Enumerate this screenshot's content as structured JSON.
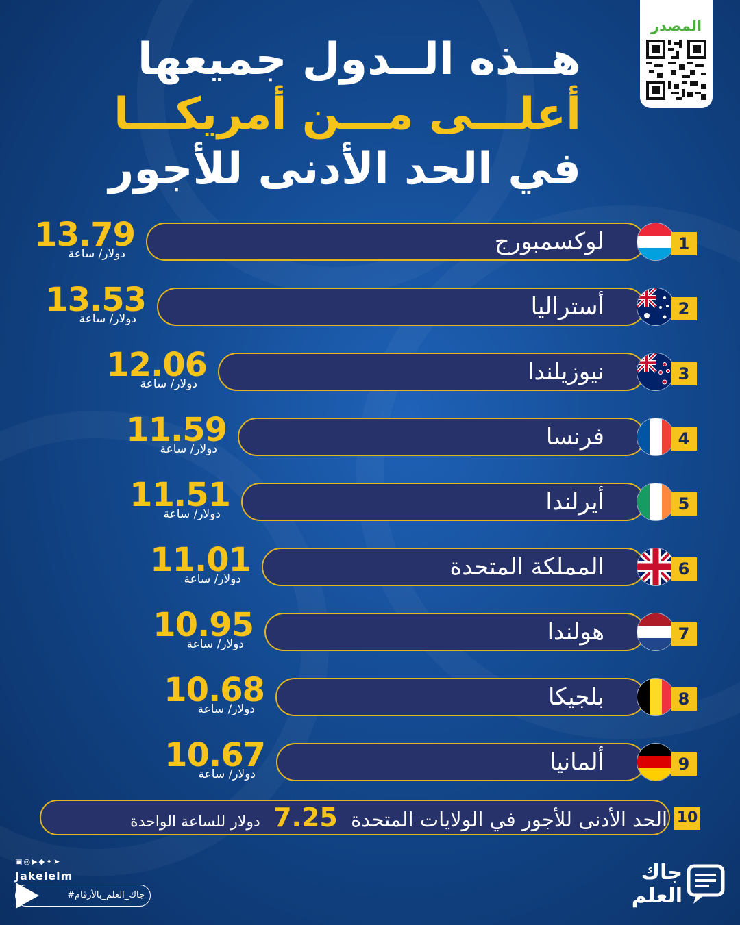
{
  "title": {
    "line1": "هــذه الــدول جميعها",
    "line2": "أعلـــى مـــن أمريكـــا",
    "line3": "في الحد الأدنى للأجور"
  },
  "source_label": "المصدر",
  "unit_label": "دولار/ ساعة",
  "chart_data": {
    "type": "bar",
    "categories": [
      "لوكسمبورج",
      "أستراليا",
      "نيوزيلندا",
      "فرنسا",
      "أيرلندا",
      "المملكة المتحدة",
      "هولندا",
      "بلجيكا",
      "ألمانيا"
    ],
    "ranks": [
      "1",
      "2",
      "3",
      "4",
      "5",
      "6",
      "7",
      "8",
      "9"
    ],
    "values": [
      13.79,
      13.53,
      12.06,
      11.59,
      11.51,
      11.01,
      10.95,
      10.68,
      10.67
    ],
    "value_labels": [
      "13.79",
      "13.53",
      "12.06",
      "11.59",
      "11.51",
      "11.01",
      "10.95",
      "10.68",
      "10.67"
    ],
    "flags": [
      "luxembourg-flag",
      "australia-flag",
      "new-zealand-flag",
      "france-flag",
      "ireland-flag",
      "uk-flag",
      "netherlands-flag",
      "belgium-flag",
      "germany-flag"
    ]
  },
  "us_row": {
    "rank": "10",
    "text_before": "الحد الأدنى للأجور في الولايات المتحدة",
    "value": "7.25",
    "text_after": "دولار للساعة الواحدة"
  },
  "footer": {
    "handle": "Jakelelm",
    "hashtag": "#جاك_العلم_بالأرقام",
    "brand_line1": "جاك",
    "brand_line2": "العلم"
  },
  "colors": {
    "accent": "#f5c31a",
    "pill": "#27326a",
    "background": "#13498f"
  }
}
